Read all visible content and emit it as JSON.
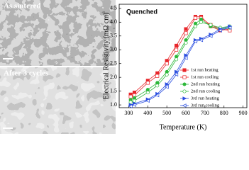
{
  "images": {
    "top_label": "As sintered",
    "bottom_label": "After 3 cycles"
  },
  "chart_data": {
    "type": "line",
    "annotation": "Quenched",
    "x_label": "Temperature (K)",
    "y_label": "Electrical Resistivity (mΩ cm)",
    "x": [
      310,
      330,
      400,
      450,
      500,
      550,
      600,
      650,
      680,
      730,
      780,
      830
    ],
    "xlim": [
      250,
      920
    ],
    "xticks": [
      300,
      400,
      500,
      600,
      700,
      800,
      900
    ],
    "ylim": [
      0.9,
      4.65
    ],
    "yticks": [
      {
        "value": 1,
        "label": "1.0"
      },
      {
        "value": 1.5,
        "label": "1.5"
      },
      {
        "value": 2,
        "label": "2.0"
      },
      {
        "value": 2.5,
        "label": "2.5"
      },
      {
        "value": 3,
        "label": "3.0"
      },
      {
        "value": 3.5,
        "label": "3.5"
      },
      {
        "value": 4,
        "label": "4.0"
      },
      {
        "value": 4.5,
        "label": "4.5"
      }
    ],
    "series": [
      {
        "name": "1st run heating",
        "color": "#e8262b",
        "marker": "square",
        "filled": true,
        "values": [
          1.38,
          1.45,
          1.88,
          2.15,
          2.6,
          3.15,
          3.75,
          4.2,
          4.2,
          3.85,
          3.7,
          3.75
        ]
      },
      {
        "name": "1st run cooling",
        "color": "#e8262b",
        "marker": "square",
        "filled": false,
        "values": [
          1.3,
          1.35,
          1.8,
          2.05,
          2.5,
          3.0,
          3.6,
          4.15,
          4.15,
          3.9,
          3.75,
          3.7
        ]
      },
      {
        "name": "2nd run heating",
        "color": "#2db83a",
        "marker": "circle",
        "filled": true,
        "values": [
          1.18,
          1.25,
          1.55,
          1.8,
          2.2,
          2.75,
          3.35,
          3.95,
          4.1,
          3.85,
          3.75,
          3.8
        ]
      },
      {
        "name": "2nd run cooling",
        "color": "#2db83a",
        "marker": "circle",
        "filled": false,
        "values": [
          1.1,
          1.15,
          1.45,
          1.7,
          2.1,
          2.65,
          3.25,
          3.85,
          4.0,
          3.9,
          3.8,
          3.85
        ]
      },
      {
        "name": "3rd run heating",
        "color": "#2b4fe0",
        "marker": "tri-right",
        "filled": true,
        "values": [
          1.0,
          1.05,
          1.2,
          1.4,
          1.75,
          2.2,
          2.8,
          3.35,
          3.4,
          3.55,
          3.75,
          3.85
        ]
      },
      {
        "name": "3rd run cooling",
        "color": "#2b4fe0",
        "marker": "tri-left",
        "filled": false,
        "values": [
          0.95,
          1.0,
          1.15,
          1.35,
          1.65,
          2.1,
          2.7,
          3.3,
          3.35,
          3.5,
          3.7,
          3.8
        ]
      }
    ]
  }
}
